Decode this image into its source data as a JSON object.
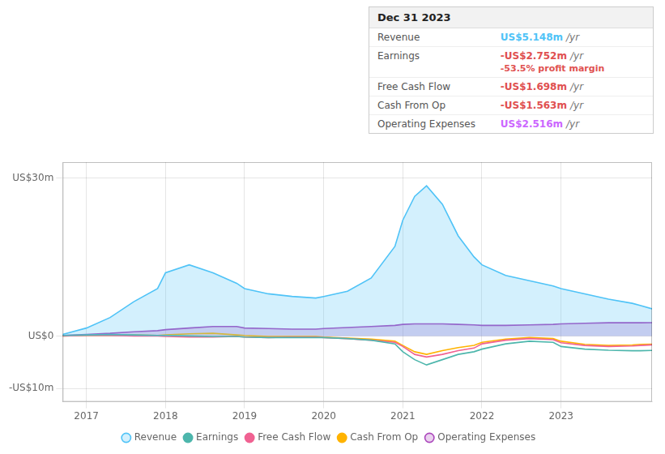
{
  "chart_data": {
    "type": "line",
    "x": [
      2016.7,
      2017.0,
      2017.3,
      2017.6,
      2017.9,
      2018.0,
      2018.3,
      2018.6,
      2018.9,
      2019.0,
      2019.3,
      2019.6,
      2019.9,
      2020.0,
      2020.3,
      2020.6,
      2020.9,
      2021.0,
      2021.15,
      2021.3,
      2021.5,
      2021.7,
      2021.9,
      2022.0,
      2022.3,
      2022.6,
      2022.9,
      2023.0,
      2023.3,
      2023.6,
      2023.9,
      2024.0,
      2024.15
    ],
    "series": [
      {
        "name": "Revenue",
        "color": "#4fc3f7",
        "type": "area",
        "values": [
          0.3,
          1.5,
          3.5,
          6.5,
          9.0,
          12.0,
          13.5,
          12.0,
          10.0,
          9.0,
          8.0,
          7.5,
          7.2,
          7.5,
          8.5,
          11.0,
          17.0,
          22.0,
          26.5,
          28.5,
          25.0,
          19.0,
          15.0,
          13.5,
          11.5,
          10.5,
          9.5,
          9.0,
          8.0,
          7.0,
          6.2,
          5.8,
          5.148
        ]
      },
      {
        "name": "Earnings",
        "color": "#4db6ac",
        "type": "line",
        "values": [
          0.1,
          0.2,
          0.3,
          0.2,
          0.1,
          0.1,
          0.0,
          -0.1,
          -0.1,
          -0.2,
          -0.3,
          -0.3,
          -0.3,
          -0.3,
          -0.5,
          -0.8,
          -1.5,
          -3.0,
          -4.5,
          -5.5,
          -4.5,
          -3.5,
          -3.0,
          -2.5,
          -1.5,
          -1.0,
          -1.2,
          -2.0,
          -2.5,
          -2.7,
          -2.8,
          -2.8,
          -2.752
        ]
      },
      {
        "name": "Free Cash Flow",
        "color": "#f06292",
        "type": "line",
        "values": [
          0.0,
          0.1,
          0.1,
          0.0,
          0.0,
          -0.1,
          -0.2,
          -0.2,
          -0.1,
          -0.2,
          -0.3,
          -0.2,
          -0.2,
          -0.3,
          -0.5,
          -0.8,
          -1.2,
          -2.0,
          -3.5,
          -4.0,
          -3.5,
          -2.8,
          -2.3,
          -1.5,
          -0.8,
          -0.5,
          -0.7,
          -1.3,
          -1.8,
          -2.0,
          -1.9,
          -1.8,
          -1.698
        ]
      },
      {
        "name": "Cash From Op",
        "color": "#ffb300",
        "type": "line",
        "values": [
          0.0,
          0.1,
          0.1,
          0.2,
          0.1,
          0.2,
          0.4,
          0.5,
          0.2,
          0.1,
          -0.1,
          -0.1,
          -0.1,
          -0.2,
          -0.4,
          -0.6,
          -1.0,
          -1.8,
          -3.0,
          -3.5,
          -2.8,
          -2.2,
          -1.8,
          -1.2,
          -0.6,
          -0.3,
          -0.5,
          -1.0,
          -1.6,
          -1.8,
          -1.7,
          -1.6,
          -1.563
        ]
      },
      {
        "name": "Operating Expenses",
        "color": "#ab47bc",
        "type": "area",
        "values": [
          0.1,
          0.3,
          0.5,
          0.8,
          1.0,
          1.2,
          1.5,
          1.8,
          1.8,
          1.5,
          1.4,
          1.3,
          1.3,
          1.4,
          1.6,
          1.8,
          2.0,
          2.2,
          2.3,
          2.3,
          2.3,
          2.2,
          2.1,
          2.0,
          2.0,
          2.1,
          2.2,
          2.3,
          2.4,
          2.5,
          2.5,
          2.5,
          2.516
        ]
      }
    ],
    "xlim": [
      2016.7,
      2024.15
    ],
    "xticks": [
      2017,
      2018,
      2019,
      2020,
      2021,
      2022,
      2023
    ],
    "ylim": [
      -12.5,
      33
    ],
    "yticks": [
      {
        "value": -10,
        "label": "-US$10m"
      },
      {
        "value": 0,
        "label": "US$0"
      },
      {
        "value": 30,
        "label": "US$30m"
      }
    ],
    "grid": true,
    "legend": "bottom",
    "annotations": {
      "title": "Dec 31 2023",
      "rows": [
        {
          "label": "Revenue",
          "value": "US$5.148m",
          "color": "#4fc3f7",
          "suffix": "/yr"
        },
        {
          "label": "Earnings",
          "value": "-US$2.752m",
          "color": "#e05050",
          "suffix": "/yr",
          "extra": "-53.5% profit margin",
          "extra_color": "#e05050"
        },
        {
          "label": "Free Cash Flow",
          "value": "-US$1.698m",
          "color": "#e05050",
          "suffix": "/yr"
        },
        {
          "label": "Cash From Op",
          "value": "-US$1.563m",
          "color": "#e05050",
          "suffix": "/yr"
        },
        {
          "label": "Operating Expenses",
          "value": "US$2.516m",
          "color": "#cc66ff",
          "suffix": "/yr"
        }
      ]
    }
  }
}
